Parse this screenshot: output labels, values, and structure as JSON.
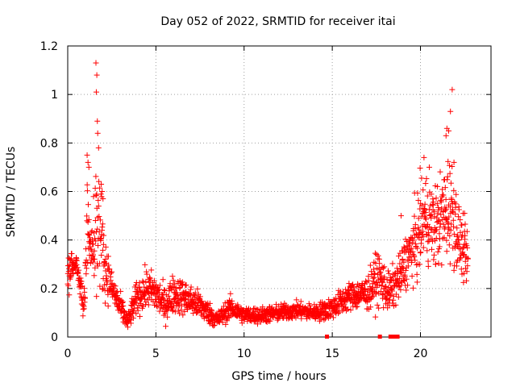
{
  "chart_data": {
    "type": "scatter",
    "title": "Day 052 of 2022, SRMTID for receiver itai",
    "xlabel": "GPS time / hours",
    "ylabel": "SRMTID / TECUs",
    "xlim": [
      0,
      24
    ],
    "ylim": [
      0,
      1.2
    ],
    "xticks": [
      0,
      5,
      10,
      15,
      20
    ],
    "xtick_labels": [
      "0",
      "5",
      "10",
      "15",
      "20"
    ],
    "yticks": [
      0,
      0.2,
      0.4,
      0.6,
      0.8,
      1,
      1.2
    ],
    "ytick_labels": [
      "0",
      "0.2",
      "0.4",
      "0.6",
      "0.8",
      "1",
      "1.2"
    ],
    "grid": true,
    "marker": "+",
    "color": "#ff0000",
    "series": [
      {
        "name": "SRMTID",
        "profile": [
          [
            0.0,
            0.26,
            0.08
          ],
          [
            0.5,
            0.3,
            0.07
          ],
          [
            0.9,
            0.13,
            0.05
          ],
          [
            1.1,
            0.45,
            0.2
          ],
          [
            1.4,
            0.4,
            0.15
          ],
          [
            1.7,
            0.5,
            0.25
          ],
          [
            2.1,
            0.3,
            0.12
          ],
          [
            2.5,
            0.2,
            0.06
          ],
          [
            3.0,
            0.12,
            0.05
          ],
          [
            3.4,
            0.06,
            0.03
          ],
          [
            3.9,
            0.16,
            0.06
          ],
          [
            4.5,
            0.2,
            0.07
          ],
          [
            5.0,
            0.18,
            0.07
          ],
          [
            5.5,
            0.13,
            0.06
          ],
          [
            6.0,
            0.18,
            0.07
          ],
          [
            6.7,
            0.16,
            0.06
          ],
          [
            7.5,
            0.13,
            0.05
          ],
          [
            8.5,
            0.07,
            0.03
          ],
          [
            9.2,
            0.12,
            0.04
          ],
          [
            10.0,
            0.09,
            0.03
          ],
          [
            11.0,
            0.09,
            0.03
          ],
          [
            12.0,
            0.1,
            0.03
          ],
          [
            13.0,
            0.11,
            0.03
          ],
          [
            14.0,
            0.1,
            0.03
          ],
          [
            15.0,
            0.12,
            0.04
          ],
          [
            16.0,
            0.17,
            0.05
          ],
          [
            17.0,
            0.18,
            0.06
          ],
          [
            17.6,
            0.25,
            0.1
          ],
          [
            18.2,
            0.18,
            0.07
          ],
          [
            18.8,
            0.24,
            0.08
          ],
          [
            19.2,
            0.32,
            0.1
          ],
          [
            19.7,
            0.38,
            0.14
          ],
          [
            20.2,
            0.5,
            0.16
          ],
          [
            20.8,
            0.45,
            0.15
          ],
          [
            21.3,
            0.5,
            0.18
          ],
          [
            21.7,
            0.55,
            0.2
          ],
          [
            22.2,
            0.4,
            0.12
          ],
          [
            22.7,
            0.3,
            0.08
          ]
        ],
        "spikes": [
          [
            1.6,
            1.13
          ],
          [
            1.65,
            1.08
          ],
          [
            1.62,
            1.01
          ],
          [
            1.68,
            0.89
          ],
          [
            1.7,
            0.84
          ],
          [
            1.75,
            0.78
          ],
          [
            1.1,
            0.75
          ],
          [
            1.15,
            0.72
          ],
          [
            1.2,
            0.7
          ],
          [
            1.9,
            0.63
          ],
          [
            1.95,
            0.6
          ],
          [
            2.0,
            0.57
          ],
          [
            21.8,
            1.02
          ],
          [
            21.7,
            0.93
          ],
          [
            21.5,
            0.86
          ],
          [
            21.6,
            0.85
          ],
          [
            21.45,
            0.83
          ],
          [
            20.2,
            0.74
          ],
          [
            20.5,
            0.7
          ],
          [
            21.9,
            0.72
          ],
          [
            22.5,
            0.51
          ],
          [
            18.9,
            0.5
          ]
        ],
        "zero_markers": [
          14.7,
          17.7,
          18.3,
          18.5,
          18.7
        ]
      }
    ]
  }
}
